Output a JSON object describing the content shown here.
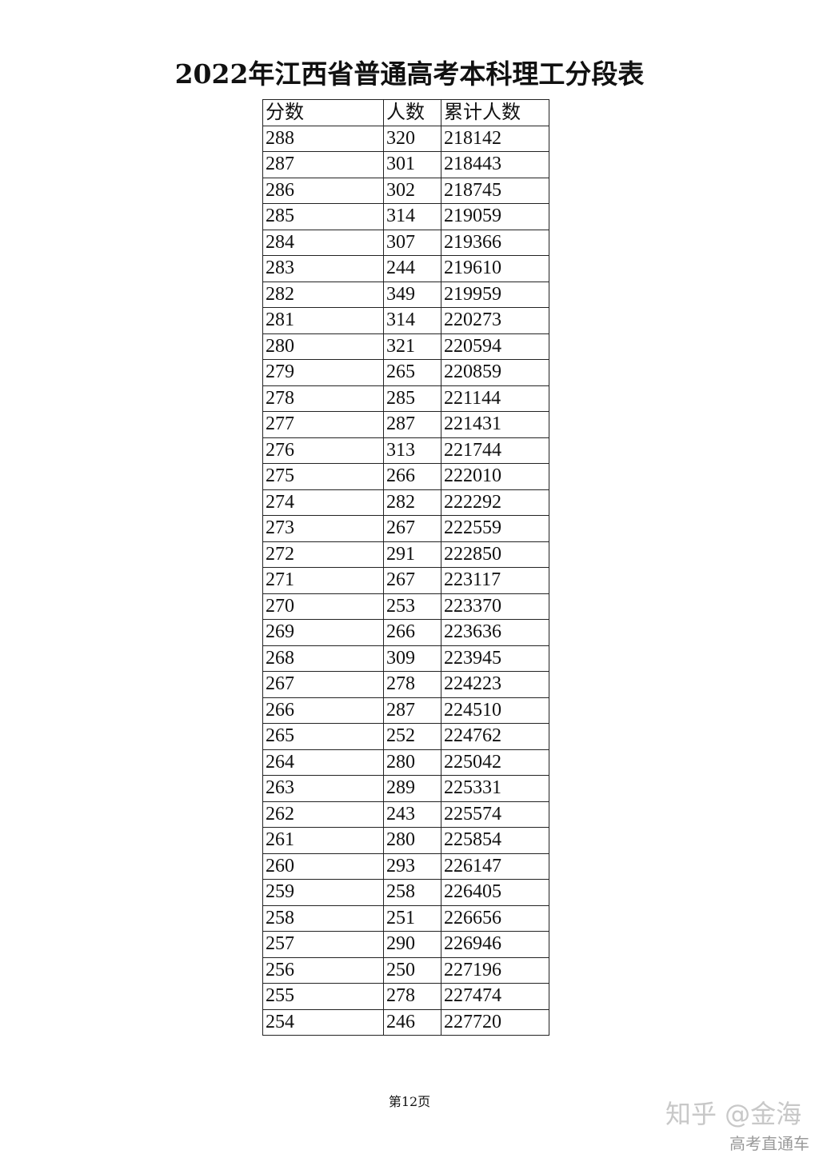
{
  "title": "2022年江西省普通高考本科理工分段表",
  "table": {
    "headers": [
      "分数",
      "人数",
      "累计人数"
    ],
    "rows": [
      [
        "288",
        "320",
        "218142"
      ],
      [
        "287",
        "301",
        "218443"
      ],
      [
        "286",
        "302",
        "218745"
      ],
      [
        "285",
        "314",
        "219059"
      ],
      [
        "284",
        "307",
        "219366"
      ],
      [
        "283",
        "244",
        "219610"
      ],
      [
        "282",
        "349",
        "219959"
      ],
      [
        "281",
        "314",
        "220273"
      ],
      [
        "280",
        "321",
        "220594"
      ],
      [
        "279",
        "265",
        "220859"
      ],
      [
        "278",
        "285",
        "221144"
      ],
      [
        "277",
        "287",
        "221431"
      ],
      [
        "276",
        "313",
        "221744"
      ],
      [
        "275",
        "266",
        "222010"
      ],
      [
        "274",
        "282",
        "222292"
      ],
      [
        "273",
        "267",
        "222559"
      ],
      [
        "272",
        "291",
        "222850"
      ],
      [
        "271",
        "267",
        "223117"
      ],
      [
        "270",
        "253",
        "223370"
      ],
      [
        "269",
        "266",
        "223636"
      ],
      [
        "268",
        "309",
        "223945"
      ],
      [
        "267",
        "278",
        "224223"
      ],
      [
        "266",
        "287",
        "224510"
      ],
      [
        "265",
        "252",
        "224762"
      ],
      [
        "264",
        "280",
        "225042"
      ],
      [
        "263",
        "289",
        "225331"
      ],
      [
        "262",
        "243",
        "225574"
      ],
      [
        "261",
        "280",
        "225854"
      ],
      [
        "260",
        "293",
        "226147"
      ],
      [
        "259",
        "258",
        "226405"
      ],
      [
        "258",
        "251",
        "226656"
      ],
      [
        "257",
        "290",
        "226946"
      ],
      [
        "256",
        "250",
        "227196"
      ],
      [
        "255",
        "278",
        "227474"
      ],
      [
        "254",
        "246",
        "227720"
      ]
    ]
  },
  "footer": {
    "page": "第12页"
  },
  "watermark": {
    "primary": "知乎 @金海",
    "secondary": "高考直通车"
  }
}
